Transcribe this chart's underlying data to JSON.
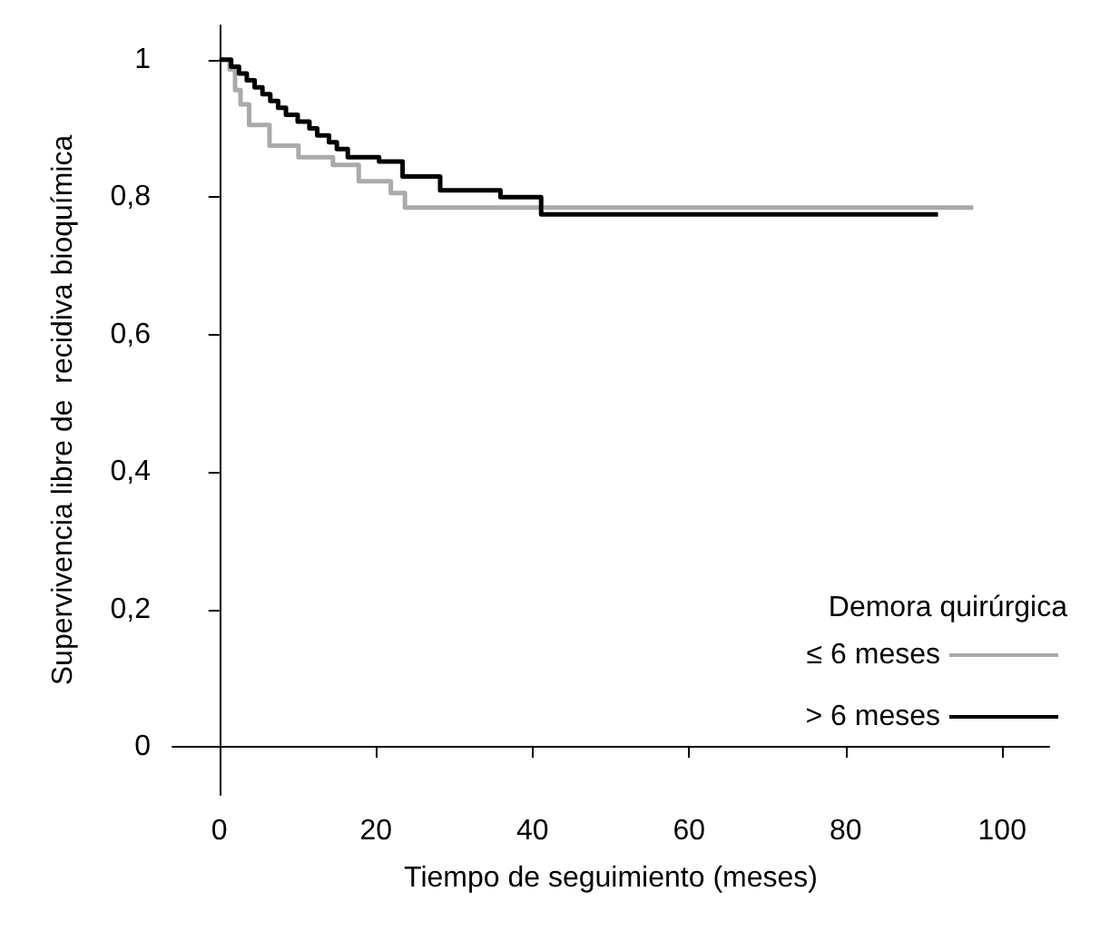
{
  "chart_data": {
    "type": "step",
    "xlabel": "Tiempo de seguimiento (meses)",
    "ylabel": "Supervivencia libre de  recidiva bioquímica",
    "legend_title": "Demora quirúrgica",
    "legend": "bottom right",
    "grid": false,
    "marker": "none",
    "line_style": "solid",
    "xlim": [
      -6,
      106
    ],
    "xticks": [
      0,
      20,
      40,
      60,
      80,
      100
    ],
    "ylim": [
      -0.07,
      1.05
    ],
    "yticks": [
      {
        "value": 0,
        "label": "0"
      },
      {
        "value": 0.2,
        "label": "0,2"
      },
      {
        "value": 0.4,
        "label": "0,4"
      },
      {
        "value": 0.6,
        "label": "0,6"
      },
      {
        "value": 0.8,
        "label": "0,8"
      },
      {
        "value": 1,
        "label": "1"
      }
    ],
    "series": [
      {
        "name": "≤ 6 meses",
        "color": "#aaaaaa",
        "x": [
          0,
          1.3,
          2.0,
          2.7,
          3.8,
          6.4,
          10.1,
          14.5,
          17.8,
          21.9,
          23.7,
          96.3
        ],
        "values": [
          1,
          0.986,
          0.956,
          0.935,
          0.905,
          0.875,
          0.858,
          0.847,
          0.823,
          0.806,
          0.785,
          0.785
        ]
      },
      {
        "name": "> 6 meses",
        "color": "#000000",
        "x": [
          0,
          1.5,
          2.5,
          3.5,
          4.5,
          5.5,
          6.5,
          7.5,
          8.5,
          10,
          11.5,
          12.5,
          14,
          15,
          16.4,
          20.4,
          23.4,
          28.2,
          35.9,
          41.1,
          91.8
        ],
        "values": [
          1,
          0.99,
          0.98,
          0.97,
          0.96,
          0.95,
          0.94,
          0.93,
          0.92,
          0.91,
          0.9,
          0.89,
          0.88,
          0.87,
          0.858,
          0.852,
          0.83,
          0.81,
          0.8,
          0.775,
          0.775
        ]
      }
    ]
  }
}
